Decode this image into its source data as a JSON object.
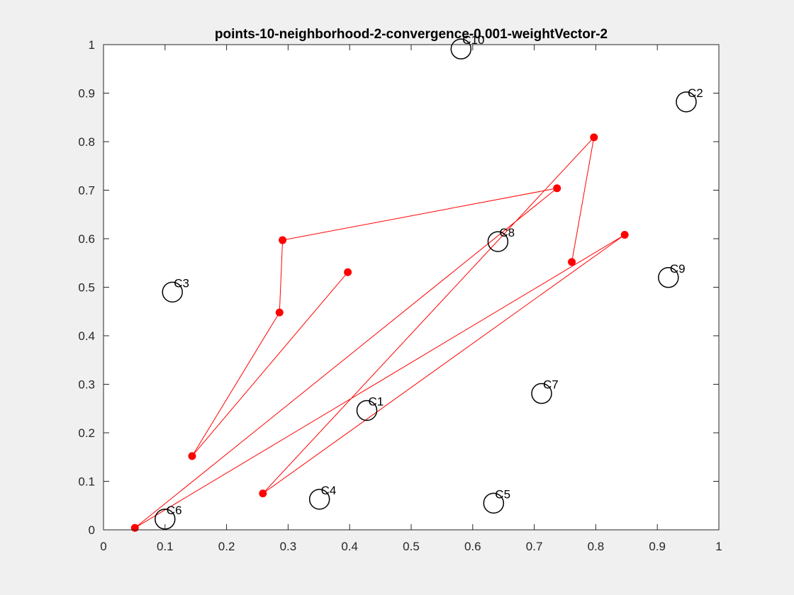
{
  "chart_data": {
    "type": "scatter",
    "title": "points-10-neighborhood-2-convergence-0.001-weightVector-2",
    "xlabel": "",
    "ylabel": "",
    "xlim": [
      0,
      1
    ],
    "ylim": [
      0,
      1
    ],
    "xticks": [
      "0",
      "0.1",
      "0.2",
      "0.3",
      "0.4",
      "0.5",
      "0.6",
      "0.7",
      "0.8",
      "0.9",
      "1"
    ],
    "yticks": [
      "0",
      "0.1",
      "0.2",
      "0.3",
      "0.4",
      "0.5",
      "0.6",
      "0.7",
      "0.8",
      "0.9",
      "1"
    ],
    "grid": false,
    "colors": {
      "path": "#ff0000",
      "cities": "#000000",
      "axes": "#262626",
      "plot_bg": "#ffffff",
      "figure_bg": "#f0f0f0"
    },
    "cities": [
      {
        "label": "C1",
        "x": 0.428,
        "y": 0.246
      },
      {
        "label": "C2",
        "x": 0.947,
        "y": 0.882
      },
      {
        "label": "C3",
        "x": 0.112,
        "y": 0.49
      },
      {
        "label": "C4",
        "x": 0.351,
        "y": 0.063
      },
      {
        "label": "C5",
        "x": 0.634,
        "y": 0.055
      },
      {
        "label": "C6",
        "x": 0.1,
        "y": 0.022
      },
      {
        "label": "C7",
        "x": 0.712,
        "y": 0.281
      },
      {
        "label": "C8",
        "x": 0.641,
        "y": 0.594
      },
      {
        "label": "C9",
        "x": 0.918,
        "y": 0.52
      },
      {
        "label": "C10",
        "x": 0.581,
        "y": 0.991
      }
    ],
    "path": [
      {
        "x": 0.397,
        "y": 0.531
      },
      {
        "x": 0.144,
        "y": 0.152
      },
      {
        "x": 0.286,
        "y": 0.448
      },
      {
        "x": 0.291,
        "y": 0.597
      },
      {
        "x": 0.737,
        "y": 0.704
      },
      {
        "x": 0.051,
        "y": 0.004
      },
      {
        "x": 0.847,
        "y": 0.608
      },
      {
        "x": 0.259,
        "y": 0.075
      },
      {
        "x": 0.797,
        "y": 0.809
      },
      {
        "x": 0.761,
        "y": 0.552
      }
    ]
  }
}
